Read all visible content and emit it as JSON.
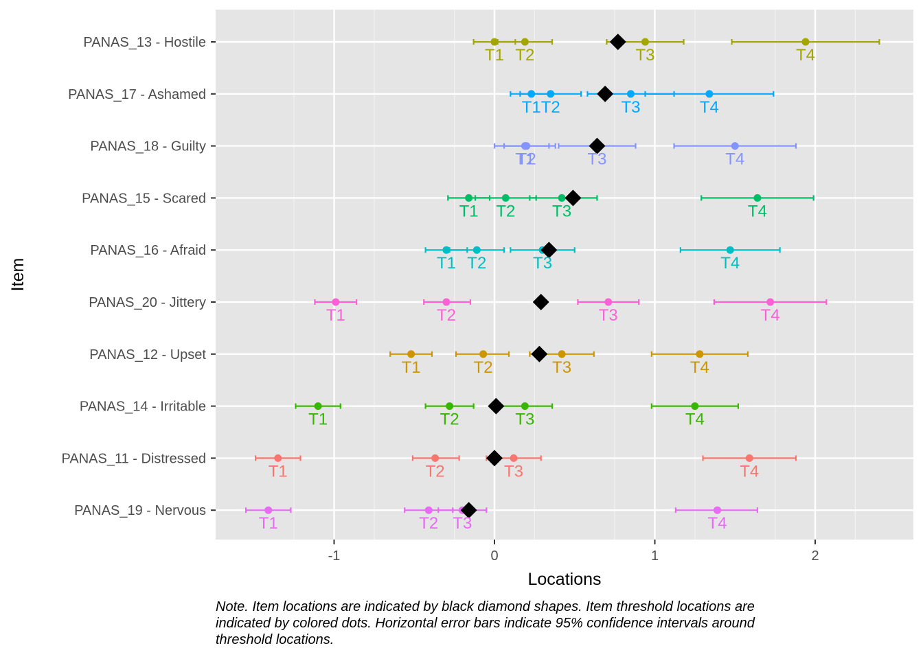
{
  "chart_data": {
    "type": "scatter",
    "xlabel": "Locations",
    "ylabel": "Item",
    "xlim": [
      -1.75,
      2.6
    ],
    "x_ticks": [
      -1,
      0,
      1,
      2
    ],
    "x_tick_labels": [
      "-1",
      "0",
      "1",
      "2"
    ],
    "grid": true,
    "legend": "none",
    "note": "Note. Item locations are indicated by black diamond shapes. Item threshold locations are indicated by colored dots. Horizontal error bars indicate 95% confidence intervals around threshold locations.",
    "items": [
      {
        "label": "PANAS_13 - Hostile",
        "color": "#a3a500",
        "location": 0.77,
        "thresholds": [
          {
            "name": "T1",
            "x": 0.0,
            "lo": -0.13,
            "hi": 0.13
          },
          {
            "name": "T2",
            "x": 0.19,
            "lo": 0.02,
            "hi": 0.36
          },
          {
            "name": "T3",
            "x": 0.94,
            "lo": 0.7,
            "hi": 1.18
          },
          {
            "name": "T4",
            "x": 1.94,
            "lo": 1.48,
            "hi": 2.4
          }
        ]
      },
      {
        "label": "PANAS_17 - Ashamed",
        "color": "#00a9ff",
        "location": 0.69,
        "thresholds": [
          {
            "name": "T1",
            "x": 0.23,
            "lo": 0.1,
            "hi": 0.36
          },
          {
            "name": "T2",
            "x": 0.35,
            "lo": 0.16,
            "hi": 0.54
          },
          {
            "name": "T3",
            "x": 0.85,
            "lo": 0.58,
            "hi": 1.12
          },
          {
            "name": "T4",
            "x": 1.34,
            "lo": 0.94,
            "hi": 1.74
          }
        ]
      },
      {
        "label": "PANAS_18 - Guilty",
        "color": "#8494ff",
        "location": 0.64,
        "thresholds": [
          {
            "name": "T1",
            "x": 0.19,
            "lo": 0.0,
            "hi": 0.38
          },
          {
            "name": "T2",
            "x": 0.2,
            "lo": 0.06,
            "hi": 0.34
          },
          {
            "name": "T3",
            "x": 0.64,
            "lo": 0.4,
            "hi": 0.88
          },
          {
            "name": "T4",
            "x": 1.5,
            "lo": 1.12,
            "hi": 1.88
          }
        ]
      },
      {
        "label": "PANAS_15 - Scared",
        "color": "#00be67",
        "location": 0.49,
        "thresholds": [
          {
            "name": "T1",
            "x": -0.16,
            "lo": -0.29,
            "hi": -0.03
          },
          {
            "name": "T2",
            "x": 0.07,
            "lo": -0.12,
            "hi": 0.26
          },
          {
            "name": "T3",
            "x": 0.42,
            "lo": 0.22,
            "hi": 0.64
          },
          {
            "name": "T4",
            "x": 1.64,
            "lo": 1.29,
            "hi": 1.99
          }
        ]
      },
      {
        "label": "PANAS_16 - Afraid",
        "color": "#00bfc4",
        "location": 0.34,
        "thresholds": [
          {
            "name": "T1",
            "x": -0.3,
            "lo": -0.43,
            "hi": -0.17
          },
          {
            "name": "T2",
            "x": -0.11,
            "lo": -0.28,
            "hi": 0.06
          },
          {
            "name": "T3",
            "x": 0.3,
            "lo": 0.1,
            "hi": 0.5
          },
          {
            "name": "T4",
            "x": 1.47,
            "lo": 1.16,
            "hi": 1.78
          }
        ]
      },
      {
        "label": "PANAS_20 - Jittery",
        "color": "#fb61d7",
        "location": 0.29,
        "thresholds": [
          {
            "name": "T1",
            "x": -0.99,
            "lo": -1.12,
            "hi": -0.86
          },
          {
            "name": "T2",
            "x": -0.3,
            "lo": -0.44,
            "hi": -0.15
          },
          {
            "name": "T3",
            "x": 0.71,
            "lo": 0.52,
            "hi": 0.9
          },
          {
            "name": "T4",
            "x": 1.72,
            "lo": 1.37,
            "hi": 2.07
          }
        ]
      },
      {
        "label": "PANAS_12 - Upset",
        "color": "#cd9600",
        "location": 0.28,
        "thresholds": [
          {
            "name": "T1",
            "x": -0.52,
            "lo": -0.65,
            "hi": -0.39
          },
          {
            "name": "T2",
            "x": -0.07,
            "lo": -0.24,
            "hi": 0.09
          },
          {
            "name": "T3",
            "x": 0.42,
            "lo": 0.22,
            "hi": 0.62
          },
          {
            "name": "T4",
            "x": 1.28,
            "lo": 0.98,
            "hi": 1.58
          }
        ]
      },
      {
        "label": "PANAS_14 - Irritable",
        "color": "#39b600",
        "location": 0.01,
        "thresholds": [
          {
            "name": "T1",
            "x": -1.1,
            "lo": -1.24,
            "hi": -0.96
          },
          {
            "name": "T2",
            "x": -0.28,
            "lo": -0.43,
            "hi": -0.13
          },
          {
            "name": "T3",
            "x": 0.19,
            "lo": 0.02,
            "hi": 0.36
          },
          {
            "name": "T4",
            "x": 1.25,
            "lo": 0.98,
            "hi": 1.52
          }
        ]
      },
      {
        "label": "PANAS_11 - Distressed",
        "color": "#f8766d",
        "location": 0.0,
        "thresholds": [
          {
            "name": "T1",
            "x": -1.35,
            "lo": -1.49,
            "hi": -1.21
          },
          {
            "name": "T2",
            "x": -0.37,
            "lo": -0.51,
            "hi": -0.22
          },
          {
            "name": "T3",
            "x": 0.12,
            "lo": -0.05,
            "hi": 0.29
          },
          {
            "name": "T4",
            "x": 1.59,
            "lo": 1.3,
            "hi": 1.88
          }
        ]
      },
      {
        "label": "PANAS_19 - Nervous",
        "color": "#e76bf3",
        "location": -0.16,
        "thresholds": [
          {
            "name": "T1",
            "x": -1.41,
            "lo": -1.55,
            "hi": -1.27
          },
          {
            "name": "T2",
            "x": -0.41,
            "lo": -0.56,
            "hi": -0.26
          },
          {
            "name": "T3",
            "x": -0.2,
            "lo": -0.35,
            "hi": -0.05
          },
          {
            "name": "T4",
            "x": 1.39,
            "lo": 1.13,
            "hi": 1.64
          }
        ]
      }
    ]
  }
}
